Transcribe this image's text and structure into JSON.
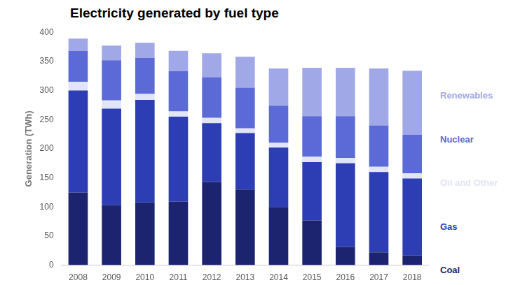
{
  "chart_data": {
    "type": "bar",
    "title": "Electricity generated by fuel type",
    "y_label": "Generation (TWh)",
    "categories": [
      "2008",
      "2009",
      "2010",
      "2011",
      "2012",
      "2013",
      "2014",
      "2015",
      "2016",
      "2017",
      "2018"
    ],
    "series": [
      {
        "name": "Coal",
        "color": "#1c2470",
        "values": [
          125,
          103,
          108,
          109,
          143,
          130,
          100,
          77,
          31,
          22,
          17
        ]
      },
      {
        "name": "Gas",
        "color": "#2d3db3",
        "values": [
          175,
          166,
          176,
          146,
          101,
          97,
          102,
          100,
          144,
          138,
          132
        ]
      },
      {
        "name": "Oil and Other",
        "color": "#e2e5f6",
        "values": [
          15,
          14,
          10,
          9,
          9,
          8,
          8,
          9,
          9,
          9,
          9
        ]
      },
      {
        "name": "Nuclear",
        "color": "#5b6ad6",
        "values": [
          53,
          69,
          62,
          69,
          70,
          70,
          64,
          70,
          72,
          71,
          66
        ]
      },
      {
        "name": "Renewables",
        "color": "#a1a8e8",
        "values": [
          21,
          25,
          26,
          35,
          41,
          53,
          64,
          83,
          83,
          98,
          110
        ]
      }
    ],
    "ylim": [
      0,
      400
    ],
    "yticks": [
      0,
      50,
      100,
      150,
      200,
      250,
      300,
      350,
      400
    ],
    "stacked": true,
    "grid": false,
    "legend": "right"
  }
}
